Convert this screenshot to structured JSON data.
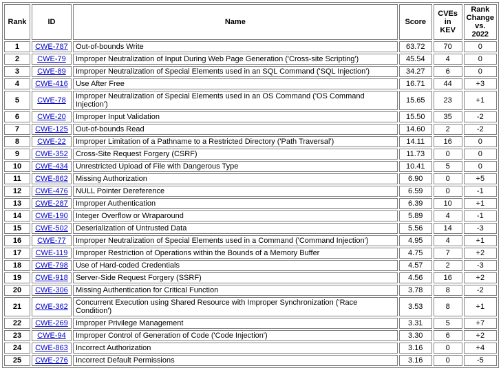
{
  "colors": {
    "background": "#ffffff",
    "border": "#7f7f7f",
    "text": "#000000",
    "link": "#0000cc"
  },
  "table": {
    "columns": [
      "Rank",
      "ID",
      "Name",
      "Score",
      "CVEs in KEV",
      "Rank Change vs. 2022"
    ],
    "rows": [
      {
        "rank": "1",
        "id": "CWE-787",
        "name": "Out-of-bounds Write",
        "score": "63.72",
        "cves_in_kev": "70",
        "rank_change": "0"
      },
      {
        "rank": "2",
        "id": "CWE-79",
        "name": "Improper Neutralization of Input During Web Page Generation ('Cross-site Scripting')",
        "score": "45.54",
        "cves_in_kev": "4",
        "rank_change": "0"
      },
      {
        "rank": "3",
        "id": "CWE-89",
        "name": "Improper Neutralization of Special Elements used in an SQL Command ('SQL Injection')",
        "score": "34.27",
        "cves_in_kev": "6",
        "rank_change": "0"
      },
      {
        "rank": "4",
        "id": "CWE-416",
        "name": "Use After Free",
        "score": "16.71",
        "cves_in_kev": "44",
        "rank_change": "+3"
      },
      {
        "rank": "5",
        "id": "CWE-78",
        "name": "Improper Neutralization of Special Elements used in an OS Command ('OS Command Injection')",
        "score": "15.65",
        "cves_in_kev": "23",
        "rank_change": "+1"
      },
      {
        "rank": "6",
        "id": "CWE-20",
        "name": "Improper Input Validation",
        "score": "15.50",
        "cves_in_kev": "35",
        "rank_change": "-2"
      },
      {
        "rank": "7",
        "id": "CWE-125",
        "name": "Out-of-bounds Read",
        "score": "14.60",
        "cves_in_kev": "2",
        "rank_change": "-2"
      },
      {
        "rank": "8",
        "id": "CWE-22",
        "name": "Improper Limitation of a Pathname to a Restricted Directory ('Path Traversal')",
        "score": "14.11",
        "cves_in_kev": "16",
        "rank_change": "0"
      },
      {
        "rank": "9",
        "id": "CWE-352",
        "name": "Cross-Site Request Forgery (CSRF)",
        "score": "11.73",
        "cves_in_kev": "0",
        "rank_change": "0"
      },
      {
        "rank": "10",
        "id": "CWE-434",
        "name": "Unrestricted Upload of File with Dangerous Type",
        "score": "10.41",
        "cves_in_kev": "5",
        "rank_change": "0"
      },
      {
        "rank": "11",
        "id": "CWE-862",
        "name": "Missing Authorization",
        "score": "6.90",
        "cves_in_kev": "0",
        "rank_change": "+5"
      },
      {
        "rank": "12",
        "id": "CWE-476",
        "name": "NULL Pointer Dereference",
        "score": "6.59",
        "cves_in_kev": "0",
        "rank_change": "-1"
      },
      {
        "rank": "13",
        "id": "CWE-287",
        "name": "Improper Authentication",
        "score": "6.39",
        "cves_in_kev": "10",
        "rank_change": "+1"
      },
      {
        "rank": "14",
        "id": "CWE-190",
        "name": "Integer Overflow or Wraparound",
        "score": "5.89",
        "cves_in_kev": "4",
        "rank_change": "-1"
      },
      {
        "rank": "15",
        "id": "CWE-502",
        "name": "Deserialization of Untrusted Data",
        "score": "5.56",
        "cves_in_kev": "14",
        "rank_change": "-3"
      },
      {
        "rank": "16",
        "id": "CWE-77",
        "name": "Improper Neutralization of Special Elements used in a Command ('Command Injection')",
        "score": "4.95",
        "cves_in_kev": "4",
        "rank_change": "+1"
      },
      {
        "rank": "17",
        "id": "CWE-119",
        "name": "Improper Restriction of Operations within the Bounds of a Memory Buffer",
        "score": "4.75",
        "cves_in_kev": "7",
        "rank_change": "+2"
      },
      {
        "rank": "18",
        "id": "CWE-798",
        "name": "Use of Hard-coded Credentials",
        "score": "4.57",
        "cves_in_kev": "2",
        "rank_change": "-3"
      },
      {
        "rank": "19",
        "id": "CWE-918",
        "name": "Server-Side Request Forgery (SSRF)",
        "score": "4.56",
        "cves_in_kev": "16",
        "rank_change": "+2"
      },
      {
        "rank": "20",
        "id": "CWE-306",
        "name": "Missing Authentication for Critical Function",
        "score": "3.78",
        "cves_in_kev": "8",
        "rank_change": "-2"
      },
      {
        "rank": "21",
        "id": "CWE-362",
        "name": "Concurrent Execution using Shared Resource with Improper Synchronization ('Race Condition')",
        "score": "3.53",
        "cves_in_kev": "8",
        "rank_change": "+1"
      },
      {
        "rank": "22",
        "id": "CWE-269",
        "name": "Improper Privilege Management",
        "score": "3.31",
        "cves_in_kev": "5",
        "rank_change": "+7"
      },
      {
        "rank": "23",
        "id": "CWE-94",
        "name": "Improper Control of Generation of Code ('Code Injection')",
        "score": "3.30",
        "cves_in_kev": "6",
        "rank_change": "+2"
      },
      {
        "rank": "24",
        "id": "CWE-863",
        "name": "Incorrect Authorization",
        "score": "3.16",
        "cves_in_kev": "0",
        "rank_change": "+4"
      },
      {
        "rank": "25",
        "id": "CWE-276",
        "name": "Incorrect Default Permissions",
        "score": "3.16",
        "cves_in_kev": "0",
        "rank_change": "-5"
      }
    ]
  }
}
